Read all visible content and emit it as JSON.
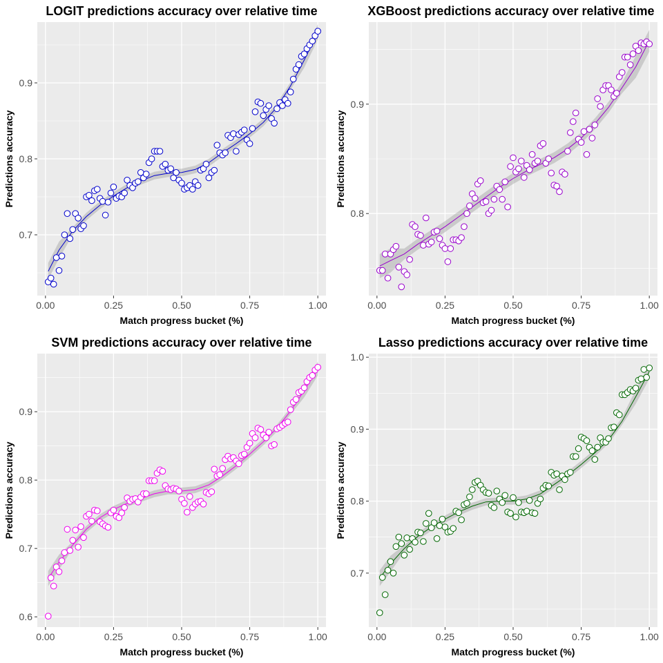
{
  "chart_data": [
    {
      "type": "scatter",
      "title": "LOGIT predictions accuracy over relative time",
      "xlabel": "Match progress bucket (%)",
      "ylabel": "Predictions accuracy",
      "xlim": [
        -0.03,
        1.03
      ],
      "ylim": [
        0.62,
        0.98
      ],
      "xticks": [
        0,
        0.25,
        0.5,
        0.75,
        1
      ],
      "xticklabels": [
        "0.00",
        "0.25",
        "0.50",
        "0.75",
        "1.00"
      ],
      "yticks": [
        0.7,
        0.8,
        0.9
      ],
      "yticklabels": [
        "0.7",
        "0.8",
        "0.9"
      ],
      "color": "#0000CC",
      "smooth": "loess with confidence band",
      "grid": true,
      "x": [
        0.01,
        0.02,
        0.03,
        0.04,
        0.05,
        0.06,
        0.07,
        0.08,
        0.09,
        0.1,
        0.11,
        0.12,
        0.13,
        0.14,
        0.15,
        0.16,
        0.17,
        0.18,
        0.19,
        0.2,
        0.21,
        0.22,
        0.23,
        0.24,
        0.25,
        0.26,
        0.27,
        0.28,
        0.29,
        0.3,
        0.31,
        0.32,
        0.33,
        0.34,
        0.35,
        0.36,
        0.37,
        0.38,
        0.39,
        0.4,
        0.41,
        0.42,
        0.43,
        0.44,
        0.45,
        0.46,
        0.47,
        0.48,
        0.49,
        0.5,
        0.51,
        0.52,
        0.53,
        0.54,
        0.55,
        0.56,
        0.57,
        0.58,
        0.59,
        0.6,
        0.61,
        0.62,
        0.63,
        0.64,
        0.65,
        0.66,
        0.67,
        0.68,
        0.69,
        0.7,
        0.71,
        0.72,
        0.73,
        0.74,
        0.75,
        0.76,
        0.77,
        0.78,
        0.79,
        0.8,
        0.81,
        0.82,
        0.83,
        0.84,
        0.85,
        0.86,
        0.87,
        0.88,
        0.89,
        0.9,
        0.91,
        0.92,
        0.93,
        0.94,
        0.95,
        0.96,
        0.97,
        0.98,
        0.99,
        1.0
      ],
      "y": [
        0.638,
        0.643,
        0.635,
        0.67,
        0.653,
        0.672,
        0.7,
        0.728,
        0.695,
        0.707,
        0.728,
        0.722,
        0.708,
        0.712,
        0.75,
        0.752,
        0.745,
        0.758,
        0.76,
        0.748,
        0.744,
        0.726,
        0.743,
        0.755,
        0.763,
        0.748,
        0.751,
        0.75,
        0.755,
        0.772,
        0.765,
        0.762,
        0.768,
        0.77,
        0.782,
        0.775,
        0.78,
        0.795,
        0.8,
        0.81,
        0.81,
        0.81,
        0.79,
        0.793,
        0.785,
        0.787,
        0.775,
        0.782,
        0.772,
        0.768,
        0.76,
        0.762,
        0.765,
        0.76,
        0.77,
        0.765,
        0.785,
        0.787,
        0.793,
        0.775,
        0.782,
        0.785,
        0.818,
        0.808,
        0.805,
        0.808,
        0.831,
        0.828,
        0.833,
        0.81,
        0.832,
        0.835,
        0.838,
        0.825,
        0.82,
        0.84,
        0.862,
        0.875,
        0.873,
        0.857,
        0.865,
        0.87,
        0.853,
        0.847,
        0.866,
        0.874,
        0.87,
        0.878,
        0.873,
        0.888,
        0.905,
        0.918,
        0.924,
        0.935,
        0.938,
        0.945,
        0.95,
        0.955,
        0.962,
        0.968
      ],
      "fit": [
        [
          0.01,
          0.652
        ],
        [
          0.05,
          0.68
        ],
        [
          0.1,
          0.705
        ],
        [
          0.15,
          0.724
        ],
        [
          0.2,
          0.739
        ],
        [
          0.25,
          0.751
        ],
        [
          0.3,
          0.762
        ],
        [
          0.35,
          0.771
        ],
        [
          0.4,
          0.778
        ],
        [
          0.45,
          0.781
        ],
        [
          0.5,
          0.782
        ],
        [
          0.55,
          0.786
        ],
        [
          0.6,
          0.795
        ],
        [
          0.65,
          0.808
        ],
        [
          0.7,
          0.82
        ],
        [
          0.75,
          0.833
        ],
        [
          0.8,
          0.848
        ],
        [
          0.85,
          0.868
        ],
        [
          0.9,
          0.896
        ],
        [
          0.95,
          0.93
        ],
        [
          1.0,
          0.967
        ]
      ]
    },
    {
      "type": "scatter",
      "title": "XGBoost predictions accuracy over relative time",
      "xlabel": "Match progress bucket (%)",
      "ylabel": "Predictions accuracy",
      "xlim": [
        -0.03,
        1.03
      ],
      "ylim": [
        0.725,
        0.975
      ],
      "xticks": [
        0,
        0.25,
        0.5,
        0.75,
        1
      ],
      "xticklabels": [
        "0.00",
        "0.25",
        "0.50",
        "0.75",
        "1.00"
      ],
      "yticks": [
        0.8,
        0.9
      ],
      "yticklabels": [
        "0.8",
        "0.9"
      ],
      "color": "#9900CC",
      "smooth": "loess with confidence band",
      "grid": true,
      "x": [
        0.01,
        0.02,
        0.03,
        0.04,
        0.05,
        0.06,
        0.07,
        0.08,
        0.09,
        0.1,
        0.11,
        0.12,
        0.13,
        0.14,
        0.15,
        0.16,
        0.17,
        0.18,
        0.19,
        0.2,
        0.21,
        0.22,
        0.23,
        0.24,
        0.25,
        0.26,
        0.27,
        0.28,
        0.29,
        0.3,
        0.31,
        0.32,
        0.33,
        0.34,
        0.35,
        0.36,
        0.37,
        0.38,
        0.39,
        0.4,
        0.41,
        0.42,
        0.43,
        0.44,
        0.45,
        0.46,
        0.47,
        0.48,
        0.49,
        0.5,
        0.51,
        0.52,
        0.53,
        0.54,
        0.55,
        0.56,
        0.57,
        0.58,
        0.59,
        0.6,
        0.61,
        0.62,
        0.63,
        0.64,
        0.65,
        0.66,
        0.67,
        0.68,
        0.69,
        0.7,
        0.71,
        0.72,
        0.73,
        0.74,
        0.75,
        0.76,
        0.77,
        0.78,
        0.79,
        0.8,
        0.81,
        0.82,
        0.83,
        0.84,
        0.85,
        0.86,
        0.87,
        0.88,
        0.89,
        0.9,
        0.91,
        0.92,
        0.93,
        0.94,
        0.95,
        0.96,
        0.97,
        0.98,
        0.99,
        1.0
      ],
      "y": [
        0.748,
        0.748,
        0.763,
        0.741,
        0.763,
        0.767,
        0.77,
        0.751,
        0.733,
        0.747,
        0.744,
        0.758,
        0.79,
        0.788,
        0.781,
        0.78,
        0.771,
        0.796,
        0.772,
        0.774,
        0.783,
        0.784,
        0.777,
        0.771,
        0.768,
        0.756,
        0.768,
        0.776,
        0.776,
        0.775,
        0.778,
        0.788,
        0.8,
        0.807,
        0.818,
        0.814,
        0.827,
        0.83,
        0.81,
        0.811,
        0.8,
        0.803,
        0.813,
        0.825,
        0.822,
        0.813,
        0.829,
        0.806,
        0.843,
        0.851,
        0.838,
        0.841,
        0.848,
        0.833,
        0.844,
        0.84,
        0.854,
        0.846,
        0.848,
        0.862,
        0.864,
        0.846,
        0.85,
        0.837,
        0.826,
        0.825,
        0.82,
        0.838,
        0.836,
        0.857,
        0.874,
        0.884,
        0.892,
        0.868,
        0.865,
        0.875,
        0.854,
        0.877,
        0.869,
        0.881,
        0.905,
        0.898,
        0.913,
        0.917,
        0.917,
        0.913,
        0.907,
        0.91,
        0.925,
        0.929,
        0.943,
        0.943,
        0.936,
        0.946,
        0.953,
        0.949,
        0.956,
        0.955,
        0.957,
        0.955
      ],
      "fit": [
        [
          0.01,
          0.752
        ],
        [
          0.05,
          0.757
        ],
        [
          0.1,
          0.763
        ],
        [
          0.15,
          0.772
        ],
        [
          0.2,
          0.78
        ],
        [
          0.25,
          0.788
        ],
        [
          0.3,
          0.797
        ],
        [
          0.35,
          0.806
        ],
        [
          0.4,
          0.815
        ],
        [
          0.45,
          0.824
        ],
        [
          0.5,
          0.832
        ],
        [
          0.55,
          0.839
        ],
        [
          0.6,
          0.845
        ],
        [
          0.65,
          0.851
        ],
        [
          0.7,
          0.859
        ],
        [
          0.75,
          0.869
        ],
        [
          0.8,
          0.882
        ],
        [
          0.85,
          0.897
        ],
        [
          0.9,
          0.915
        ],
        [
          0.95,
          0.934
        ],
        [
          1.0,
          0.958
        ]
      ]
    },
    {
      "type": "scatter",
      "title": "SVM predictions accuracy over relative time",
      "xlabel": "Match progress bucket (%)",
      "ylabel": "Predictions accuracy",
      "xlim": [
        -0.03,
        1.03
      ],
      "ylim": [
        0.585,
        0.985
      ],
      "xticks": [
        0,
        0.25,
        0.5,
        0.75,
        1
      ],
      "xticklabels": [
        "0.00",
        "0.25",
        "0.50",
        "0.75",
        "1.00"
      ],
      "yticks": [
        0.6,
        0.7,
        0.8,
        0.9
      ],
      "yticklabels": [
        "0.6",
        "0.7",
        "0.8",
        "0.9"
      ],
      "color": "#EE00EE",
      "smooth": "loess with confidence band",
      "grid": true,
      "x": [
        0.01,
        0.02,
        0.03,
        0.04,
        0.05,
        0.06,
        0.07,
        0.08,
        0.09,
        0.1,
        0.11,
        0.12,
        0.13,
        0.14,
        0.15,
        0.16,
        0.17,
        0.18,
        0.19,
        0.2,
        0.21,
        0.22,
        0.23,
        0.24,
        0.25,
        0.26,
        0.27,
        0.28,
        0.29,
        0.3,
        0.31,
        0.32,
        0.33,
        0.34,
        0.35,
        0.36,
        0.37,
        0.38,
        0.39,
        0.4,
        0.41,
        0.42,
        0.43,
        0.44,
        0.45,
        0.46,
        0.47,
        0.48,
        0.49,
        0.5,
        0.51,
        0.52,
        0.53,
        0.54,
        0.55,
        0.56,
        0.57,
        0.58,
        0.59,
        0.6,
        0.61,
        0.62,
        0.63,
        0.64,
        0.65,
        0.66,
        0.67,
        0.68,
        0.69,
        0.7,
        0.71,
        0.72,
        0.73,
        0.74,
        0.75,
        0.76,
        0.77,
        0.78,
        0.79,
        0.8,
        0.81,
        0.82,
        0.83,
        0.84,
        0.85,
        0.86,
        0.87,
        0.88,
        0.89,
        0.9,
        0.91,
        0.92,
        0.93,
        0.94,
        0.95,
        0.96,
        0.97,
        0.98,
        0.99,
        1.0
      ],
      "y": [
        0.601,
        0.657,
        0.645,
        0.673,
        0.666,
        0.682,
        0.694,
        0.728,
        0.697,
        0.712,
        0.727,
        0.702,
        0.732,
        0.716,
        0.747,
        0.75,
        0.74,
        0.756,
        0.755,
        0.739,
        0.736,
        0.733,
        0.731,
        0.752,
        0.756,
        0.747,
        0.745,
        0.752,
        0.76,
        0.774,
        0.769,
        0.772,
        0.773,
        0.768,
        0.775,
        0.78,
        0.78,
        0.799,
        0.799,
        0.799,
        0.81,
        0.815,
        0.813,
        0.792,
        0.787,
        0.786,
        0.788,
        0.787,
        0.784,
        0.772,
        0.766,
        0.753,
        0.776,
        0.76,
        0.765,
        0.768,
        0.769,
        0.765,
        0.782,
        0.78,
        0.783,
        0.816,
        0.806,
        0.808,
        0.817,
        0.83,
        0.835,
        0.831,
        0.833,
        0.828,
        0.824,
        0.836,
        0.838,
        0.848,
        0.854,
        0.868,
        0.862,
        0.876,
        0.874,
        0.866,
        0.862,
        0.87,
        0.85,
        0.852,
        0.875,
        0.877,
        0.88,
        0.883,
        0.885,
        0.903,
        0.914,
        0.918,
        0.928,
        0.93,
        0.935,
        0.944,
        0.95,
        0.953,
        0.961,
        0.965
      ],
      "fit": [
        [
          0.01,
          0.656
        ],
        [
          0.05,
          0.68
        ],
        [
          0.1,
          0.705
        ],
        [
          0.15,
          0.728
        ],
        [
          0.2,
          0.745
        ],
        [
          0.25,
          0.757
        ],
        [
          0.3,
          0.766
        ],
        [
          0.35,
          0.773
        ],
        [
          0.4,
          0.78
        ],
        [
          0.45,
          0.784
        ],
        [
          0.5,
          0.784
        ],
        [
          0.55,
          0.786
        ],
        [
          0.6,
          0.793
        ],
        [
          0.65,
          0.806
        ],
        [
          0.7,
          0.821
        ],
        [
          0.75,
          0.838
        ],
        [
          0.8,
          0.856
        ],
        [
          0.85,
          0.876
        ],
        [
          0.9,
          0.901
        ],
        [
          0.95,
          0.931
        ],
        [
          1.0,
          0.963
        ]
      ]
    },
    {
      "type": "scatter",
      "title": "Lasso predictions accuracy over relative time",
      "xlabel": "Match progress bucket (%)",
      "ylabel": "Predictions accuracy",
      "xlim": [
        -0.03,
        1.03
      ],
      "ylim": [
        0.625,
        1.005
      ],
      "xticks": [
        0,
        0.25,
        0.5,
        0.75,
        1
      ],
      "xticklabels": [
        "0.00",
        "0.25",
        "0.50",
        "0.75",
        "1.00"
      ],
      "yticks": [
        0.7,
        0.8,
        0.9,
        1.0
      ],
      "yticklabels": [
        "0.7",
        "0.8",
        "0.9",
        "1.0"
      ],
      "color": "#006600",
      "smooth": "loess with confidence band",
      "grid": true,
      "x": [
        0.01,
        0.02,
        0.03,
        0.04,
        0.05,
        0.06,
        0.07,
        0.08,
        0.09,
        0.1,
        0.11,
        0.12,
        0.13,
        0.14,
        0.15,
        0.16,
        0.17,
        0.18,
        0.19,
        0.2,
        0.21,
        0.22,
        0.23,
        0.24,
        0.25,
        0.26,
        0.27,
        0.28,
        0.29,
        0.3,
        0.31,
        0.32,
        0.33,
        0.34,
        0.35,
        0.36,
        0.37,
        0.38,
        0.39,
        0.4,
        0.41,
        0.42,
        0.43,
        0.44,
        0.45,
        0.46,
        0.47,
        0.48,
        0.49,
        0.5,
        0.51,
        0.52,
        0.53,
        0.54,
        0.55,
        0.56,
        0.57,
        0.58,
        0.59,
        0.6,
        0.61,
        0.62,
        0.63,
        0.64,
        0.65,
        0.66,
        0.67,
        0.68,
        0.69,
        0.7,
        0.71,
        0.72,
        0.73,
        0.74,
        0.75,
        0.76,
        0.77,
        0.78,
        0.79,
        0.8,
        0.81,
        0.82,
        0.83,
        0.84,
        0.85,
        0.86,
        0.87,
        0.88,
        0.89,
        0.9,
        0.91,
        0.92,
        0.93,
        0.94,
        0.95,
        0.96,
        0.97,
        0.98,
        0.99,
        1.0
      ],
      "y": [
        0.645,
        0.694,
        0.67,
        0.704,
        0.716,
        0.7,
        0.737,
        0.75,
        0.741,
        0.725,
        0.749,
        0.733,
        0.748,
        0.743,
        0.757,
        0.756,
        0.744,
        0.769,
        0.783,
        0.763,
        0.77,
        0.748,
        0.766,
        0.775,
        0.764,
        0.757,
        0.758,
        0.762,
        0.786,
        0.784,
        0.774,
        0.795,
        0.797,
        0.806,
        0.816,
        0.826,
        0.828,
        0.822,
        0.816,
        0.812,
        0.811,
        0.794,
        0.791,
        0.814,
        0.803,
        0.798,
        0.808,
        0.785,
        0.783,
        0.805,
        0.778,
        0.798,
        0.785,
        0.784,
        0.786,
        0.801,
        0.784,
        0.783,
        0.797,
        0.803,
        0.818,
        0.822,
        0.821,
        0.84,
        0.836,
        0.838,
        0.816,
        0.835,
        0.83,
        0.838,
        0.84,
        0.862,
        0.862,
        0.873,
        0.889,
        0.887,
        0.884,
        0.875,
        0.87,
        0.858,
        0.875,
        0.888,
        0.882,
        0.882,
        0.887,
        0.902,
        0.903,
        0.923,
        0.92,
        0.948,
        0.948,
        0.951,
        0.955,
        0.953,
        0.957,
        0.968,
        0.97,
        0.983,
        0.972,
        0.985
      ],
      "fit": [
        [
          0.01,
          0.693
        ],
        [
          0.05,
          0.713
        ],
        [
          0.1,
          0.734
        ],
        [
          0.15,
          0.751
        ],
        [
          0.2,
          0.764
        ],
        [
          0.25,
          0.775
        ],
        [
          0.3,
          0.785
        ],
        [
          0.35,
          0.793
        ],
        [
          0.4,
          0.799
        ],
        [
          0.45,
          0.8
        ],
        [
          0.5,
          0.8
        ],
        [
          0.55,
          0.803
        ],
        [
          0.6,
          0.81
        ],
        [
          0.65,
          0.823
        ],
        [
          0.7,
          0.836
        ],
        [
          0.75,
          0.851
        ],
        [
          0.8,
          0.867
        ],
        [
          0.85,
          0.885
        ],
        [
          0.9,
          0.911
        ],
        [
          0.95,
          0.945
        ],
        [
          1.0,
          0.98
        ]
      ]
    }
  ]
}
